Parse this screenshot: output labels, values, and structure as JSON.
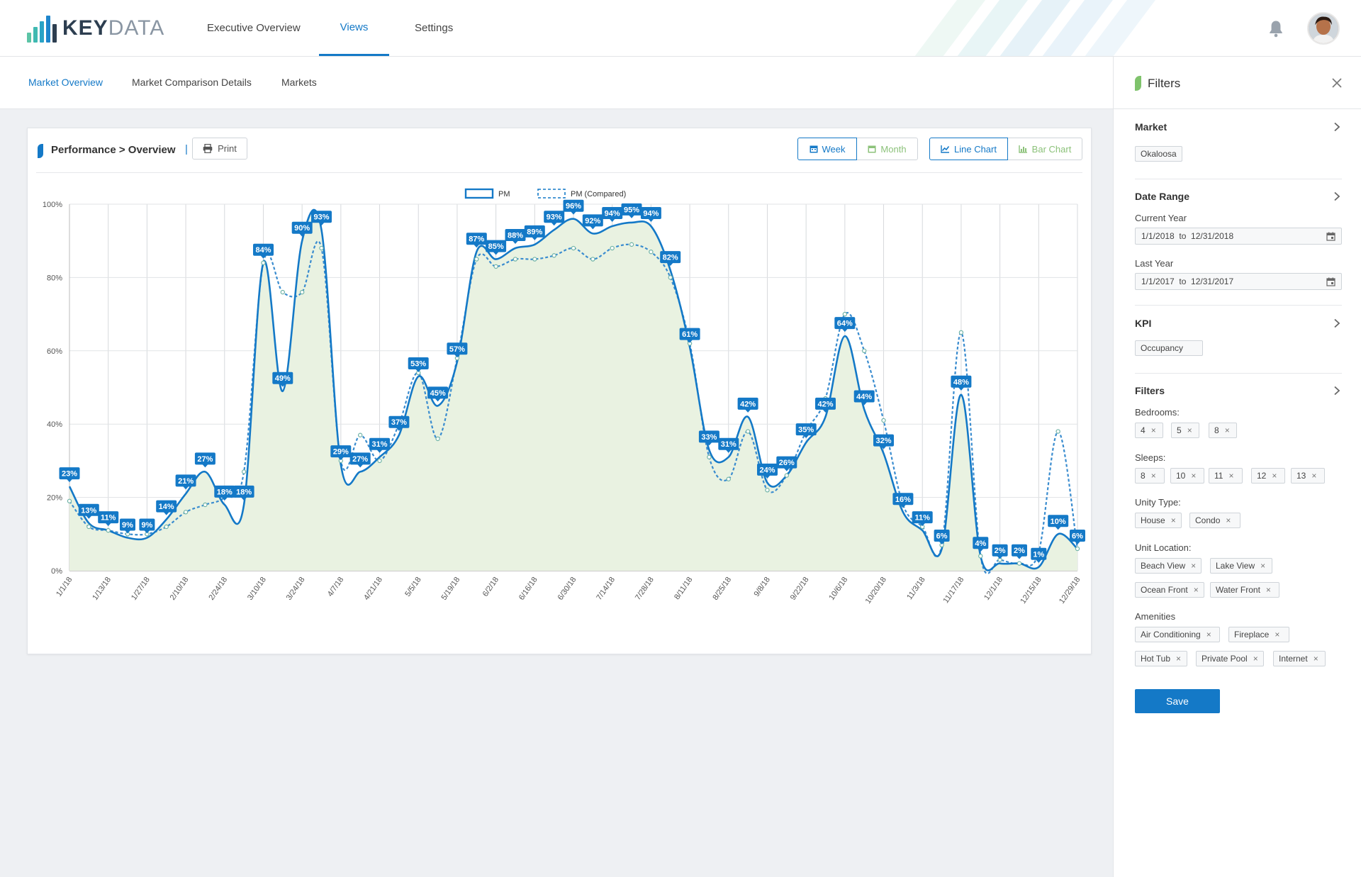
{
  "app": {
    "logo_text_bold": "KEY",
    "logo_text_light": "DATA",
    "nav": [
      {
        "label": "Executive Overview"
      },
      {
        "label": "Views"
      },
      {
        "label": "Settings"
      }
    ],
    "active_nav": "Views"
  },
  "subnav": [
    {
      "label": "Market Overview"
    },
    {
      "label": "Market Comparison Details"
    },
    {
      "label": "Markets"
    }
  ],
  "panel": {
    "breadcrumb": "Performance > Overview",
    "separator": "|",
    "print_label": "Print",
    "period_buttons": [
      {
        "label": "Week"
      },
      {
        "label": "Month"
      }
    ],
    "chart_type_buttons": [
      {
        "label": "Line Chart"
      },
      {
        "label": "Bar Chart"
      }
    ],
    "selected_period": "Week",
    "selected_chart_type": "Line Chart"
  },
  "colors": {
    "accent": "#1479c7",
    "green": "#8cc27a",
    "area_fill": "#e9f2e1",
    "compared_line": "#3a8ccf"
  },
  "chart_data": {
    "type": "line",
    "legend": [
      "PM",
      "PM (Compared)"
    ],
    "legend_position": "top-center",
    "ylim": [
      0,
      100
    ],
    "y_ticks": [
      "0%",
      "20%",
      "40%",
      "60%",
      "80%",
      "100%"
    ],
    "x_ticks": [
      "1/1/18",
      "1/13/18",
      "1/27/18",
      "2/10/18",
      "2/24/18",
      "3/10/18",
      "3/24/18",
      "4/7/18",
      "4/21/18",
      "5/5/18",
      "5/19/18",
      "6/2/18",
      "6/16/18",
      "6/30/18",
      "7/14/18",
      "7/28/18",
      "8/11/18",
      "8/25/18",
      "9/8/18",
      "9/22/18",
      "10/6/18",
      "10/20/18",
      "11/3/18",
      "11/17/18",
      "12/1/18",
      "12/15/18",
      "12/29/18"
    ],
    "grid": true,
    "series": [
      {
        "name": "PM",
        "values": [
          23,
          13,
          11,
          9,
          9,
          14,
          21,
          27,
          18,
          18,
          84,
          49,
          90,
          93,
          29,
          27,
          31,
          37,
          53,
          45,
          57,
          87,
          85,
          88,
          89,
          93,
          96,
          92,
          94,
          95,
          94,
          82,
          61,
          33,
          31,
          42,
          24,
          26,
          35,
          42,
          64,
          44,
          32,
          16,
          11,
          6,
          48,
          4,
          2,
          2,
          1,
          10,
          6
        ]
      },
      {
        "name": "PM (Compared)",
        "values": [
          19,
          12,
          11,
          10,
          10,
          12,
          16,
          18,
          20,
          27,
          84,
          76,
          76,
          88,
          30,
          37,
          30,
          40,
          54,
          36,
          58,
          85,
          83,
          85,
          85,
          86,
          88,
          85,
          88,
          89,
          87,
          80,
          62,
          31,
          25,
          38,
          22,
          26,
          38,
          47,
          70,
          60,
          41,
          18,
          12,
          7,
          65,
          4,
          3,
          2,
          5,
          38,
          6
        ]
      }
    ]
  },
  "sidebar": {
    "title": "Filters",
    "market": {
      "title": "Market",
      "value": "Okaloosa"
    },
    "date_range": {
      "title": "Date Range",
      "current_year_label": "Current Year",
      "current_year_value": "1/1/2018  to  12/31/2018",
      "last_year_label": "Last Year",
      "last_year_value": "1/1/2017  to  12/31/2017"
    },
    "kpi": {
      "title": "KPI",
      "value": "Occupancy"
    },
    "filters": {
      "title": "Filters",
      "bedrooms_label": "Bedrooms:",
      "bedrooms": [
        "4",
        "5",
        "8"
      ],
      "sleeps_label": "Sleeps:",
      "sleeps": [
        "8",
        "10",
        "11",
        "12",
        "13"
      ],
      "unity_type_label": "Unity Type:",
      "unity_type": [
        "House",
        "Condo"
      ],
      "unit_location_label": "Unit Location:",
      "unit_location": [
        "Beach View",
        "Lake View",
        "Ocean Front",
        "Water Front"
      ],
      "amenities_label": "Amenities",
      "amenities": [
        "Air Conditioning",
        "Fireplace",
        "Hot Tub",
        "Private Pool",
        "Internet"
      ]
    },
    "save_label": "Save",
    "remove_glyph": "×"
  }
}
